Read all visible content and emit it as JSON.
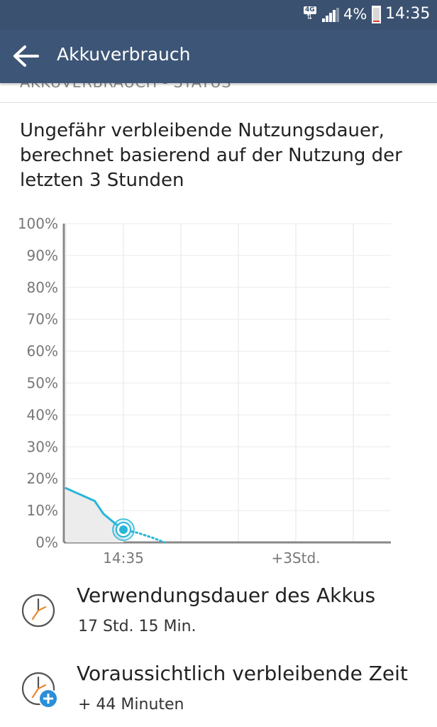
{
  "status_bar": {
    "network_tag": "4G",
    "battery_text": "4%",
    "battery_level": 0.04,
    "battery_fill_color": "#e23b2b",
    "time": "14:35"
  },
  "app_bar": {
    "back_icon": "arrow-left-icon",
    "title": "Akkuverbrauch"
  },
  "section_header_clipped": "AKKUVERBRAUCH - STATUS",
  "description": "Ungefähr verbleibende Nutzungsdauer, berechnet basierend auf der Nutzung der letzten 3 Stunden",
  "chart_data": {
    "type": "area",
    "y_ticks": [
      "100%",
      "90%",
      "80%",
      "70%",
      "60%",
      "50%",
      "40%",
      "30%",
      "20%",
      "10%",
      "0%"
    ],
    "x_tick_labels": [
      "14:35",
      "+3Std."
    ],
    "ylim": [
      0,
      100
    ],
    "grid": true,
    "series": [
      {
        "style": "solid",
        "color": "#29b6d8",
        "x": [
          -1.0,
          -0.75,
          -0.5,
          -0.35,
          -0.15,
          0.0
        ],
        "y": [
          17,
          15,
          13,
          9,
          6,
          4
        ]
      },
      {
        "style": "dotted",
        "color": "#29b6d8",
        "x": [
          0.0,
          0.25,
          0.5,
          0.72
        ],
        "y": [
          4,
          3,
          1.5,
          0
        ]
      }
    ],
    "current_point": {
      "x": 0.0,
      "y": 4
    }
  },
  "usage": {
    "icon": "clock-icon",
    "label": "Verwendungsdauer des Akkus",
    "value": "17 Std. 15 Min."
  },
  "remaining": {
    "icon": "clock-plus-icon",
    "label": "Voraussichtlich verbleibende Zeit",
    "value": "+ 44 Minuten"
  }
}
